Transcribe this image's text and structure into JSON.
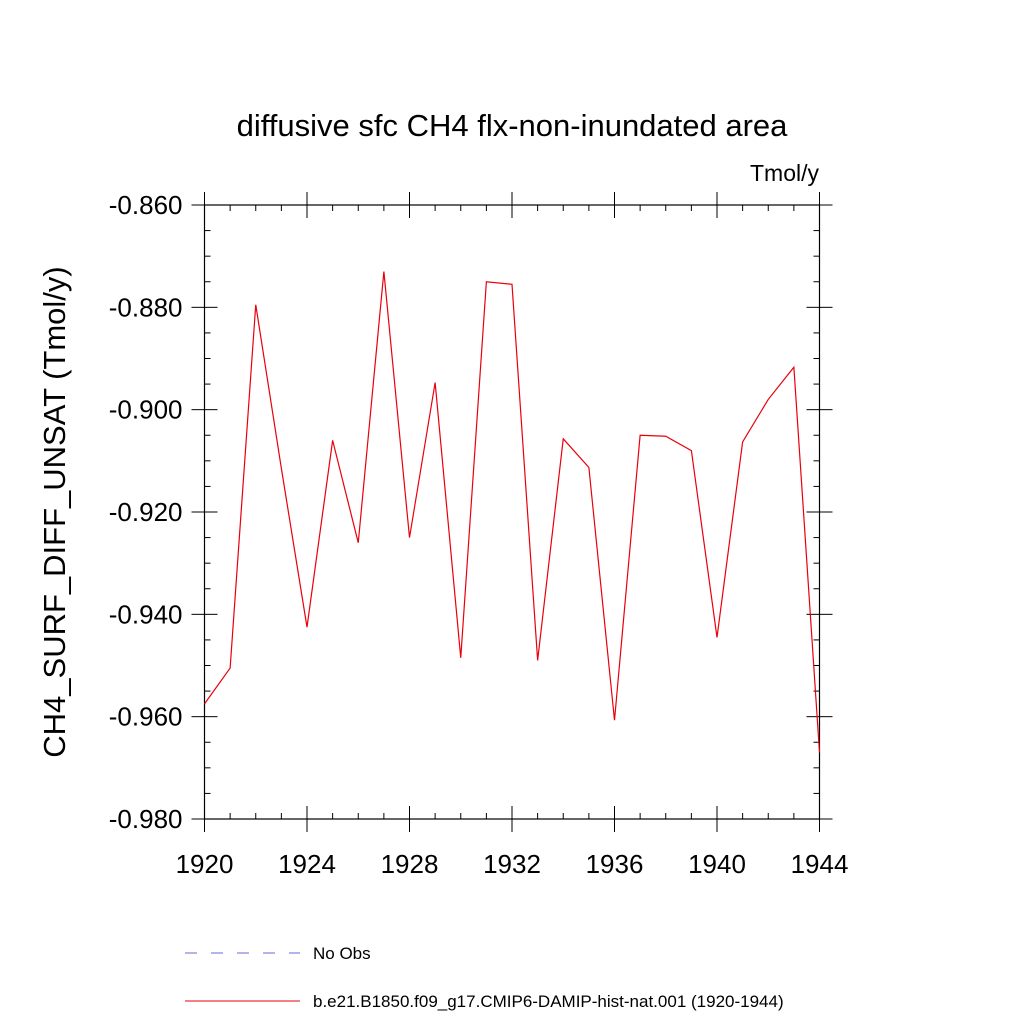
{
  "chart_data": {
    "type": "line",
    "title": "diffusive sfc CH4 flx-non-inundated area",
    "units": "Tmol/y",
    "xlabel": "",
    "ylabel": "CH4_SURF_DIFF_UNSAT  (Tmol/y)",
    "xlim": [
      1920,
      1944
    ],
    "ylim": [
      -0.98,
      -0.86
    ],
    "x_ticks": [
      "1920",
      "1924",
      "1928",
      "1932",
      "1936",
      "1940",
      "1944"
    ],
    "y_ticks": [
      "-0.860",
      "-0.880",
      "-0.900",
      "-0.920",
      "-0.940",
      "-0.960",
      "-0.980"
    ],
    "series": [
      {
        "name": "b.e21.B1850.f09_g17.CMIP6-DAMIP-hist-nat.001 (1920-1944)",
        "color": "#e8000b",
        "style": "solid",
        "x": [
          1920,
          1921,
          1922,
          1923,
          1924,
          1925,
          1926,
          1927,
          1928,
          1929,
          1930,
          1931,
          1932,
          1933,
          1934,
          1935,
          1936,
          1937,
          1938,
          1939,
          1940,
          1941,
          1942,
          1943,
          1944
        ],
        "values": [
          -0.9575,
          -0.9505,
          -0.8795,
          -0.9115,
          -0.9425,
          -0.906,
          -0.926,
          -0.873,
          -0.925,
          -0.8947,
          -0.9485,
          -0.875,
          -0.8755,
          -0.949,
          -0.9057,
          -0.9113,
          -0.9607,
          -0.905,
          -0.9052,
          -0.908,
          -0.9445,
          -0.9063,
          -0.898,
          -0.8917,
          -0.967
        ]
      }
    ],
    "legend": [
      {
        "label": "No Obs",
        "color": "#6a6ad8",
        "style": "dashed"
      },
      {
        "label": "b.e21.B1850.f09_g17.CMIP6-DAMIP-hist-nat.001 (1920-1944)",
        "color": "#e8000b",
        "style": "solid"
      }
    ],
    "legend_position": "bottom",
    "grid": false
  }
}
